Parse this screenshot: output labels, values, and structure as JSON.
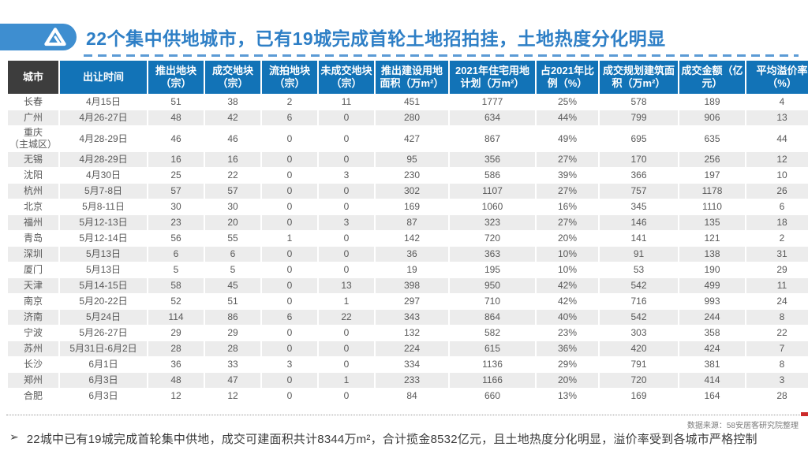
{
  "title": {
    "text": "22个集中供地城市，已有19城完成首轮土地招拍挂，土地热度分化明显",
    "logo_icon": "anjuke-triangle-logo-icon"
  },
  "colors": {
    "title_blue": "#2e7fc6",
    "logo_pill_blue": "#3e8ed0",
    "header_blue": "#1273b7",
    "header_dark": "#3d3d3d",
    "row_alt_gray": "#ececec",
    "body_text": "#595959",
    "red_mark": "#cc2a2a"
  },
  "table": {
    "headers": [
      "城市",
      "出让时间",
      "推出地块（宗）",
      "成交地块（宗）",
      "流拍地块（宗）",
      "未成交地块（宗）",
      "推出建设用地面积（万m²）",
      "2021年住宅用地计划（万m²）",
      "占2021年比例（%）",
      "成交规划建筑面积（万m²）",
      "成交金额（亿元）",
      "平均溢价率（%）"
    ],
    "rows": [
      [
        "长春",
        "4月15日",
        "51",
        "38",
        "2",
        "11",
        "451",
        "1777",
        "25%",
        "578",
        "189",
        "4"
      ],
      [
        "广州",
        "4月26-27日",
        "48",
        "42",
        "6",
        "0",
        "280",
        "634",
        "44%",
        "799",
        "906",
        "13"
      ],
      [
        "重庆\n（主城区）",
        "4月28-29日",
        "46",
        "46",
        "0",
        "0",
        "427",
        "867",
        "49%",
        "695",
        "635",
        "44"
      ],
      [
        "无锡",
        "4月28-29日",
        "16",
        "16",
        "0",
        "0",
        "95",
        "356",
        "27%",
        "170",
        "256",
        "12"
      ],
      [
        "沈阳",
        "4月30日",
        "25",
        "22",
        "0",
        "3",
        "230",
        "586",
        "39%",
        "366",
        "197",
        "10"
      ],
      [
        "杭州",
        "5月7-8日",
        "57",
        "57",
        "0",
        "0",
        "302",
        "1107",
        "27%",
        "757",
        "1178",
        "26"
      ],
      [
        "北京",
        "5月8-11日",
        "30",
        "30",
        "0",
        "0",
        "169",
        "1060",
        "16%",
        "345",
        "1110",
        "6"
      ],
      [
        "福州",
        "5月12-13日",
        "23",
        "20",
        "0",
        "3",
        "87",
        "323",
        "27%",
        "146",
        "135",
        "18"
      ],
      [
        "青岛",
        "5月12-14日",
        "56",
        "55",
        "1",
        "0",
        "142",
        "720",
        "20%",
        "141",
        "121",
        "2"
      ],
      [
        "深圳",
        "5月13日",
        "6",
        "6",
        "0",
        "0",
        "36",
        "363",
        "10%",
        "91",
        "138",
        "31"
      ],
      [
        "厦门",
        "5月13日",
        "5",
        "5",
        "0",
        "0",
        "19",
        "195",
        "10%",
        "53",
        "190",
        "29"
      ],
      [
        "天津",
        "5月14-15日",
        "58",
        "45",
        "0",
        "13",
        "398",
        "950",
        "42%",
        "542",
        "499",
        "11"
      ],
      [
        "南京",
        "5月20-22日",
        "52",
        "51",
        "0",
        "1",
        "297",
        "710",
        "42%",
        "716",
        "993",
        "24"
      ],
      [
        "济南",
        "5月24日",
        "114",
        "86",
        "6",
        "22",
        "343",
        "864",
        "40%",
        "542",
        "244",
        "8"
      ],
      [
        "宁波",
        "5月26-27日",
        "29",
        "29",
        "0",
        "0",
        "132",
        "582",
        "23%",
        "303",
        "358",
        "22"
      ],
      [
        "苏州",
        "5月31日-6月2日",
        "28",
        "28",
        "0",
        "0",
        "224",
        "615",
        "36%",
        "420",
        "424",
        "7"
      ],
      [
        "长沙",
        "6月1日",
        "36",
        "33",
        "3",
        "0",
        "334",
        "1136",
        "29%",
        "791",
        "381",
        "8"
      ],
      [
        "郑州",
        "6月3日",
        "48",
        "47",
        "0",
        "1",
        "233",
        "1166",
        "20%",
        "720",
        "414",
        "3"
      ],
      [
        "合肥",
        "6月3日",
        "12",
        "12",
        "0",
        "0",
        "84",
        "660",
        "13%",
        "169",
        "164",
        "28"
      ]
    ]
  },
  "source": "数据来源：58安居客研究院整理",
  "footer": {
    "bullet": "➢",
    "text": "22城中已有19城完成首轮集中供地，成交可建面积共计8344万m²，合计揽金8532亿元，且土地热度分化明显，溢价率受到各城市严格控制"
  }
}
